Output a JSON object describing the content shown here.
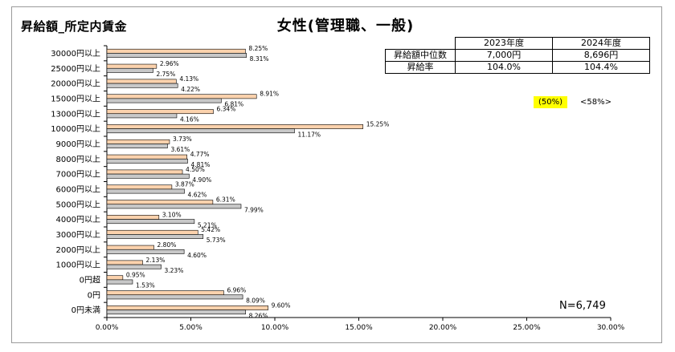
{
  "header": {
    "left_title": "昇給額_所定内賃金",
    "center_title": "女性(管理職、一般)"
  },
  "stats_table": {
    "columns": [
      "2023年度",
      "2024年度"
    ],
    "rows": [
      {
        "label": "昇給額中位数",
        "values": [
          "7,000円",
          "8,696円"
        ]
      },
      {
        "label": "昇給率",
        "values": [
          "104.0%",
          "104.4%"
        ]
      }
    ]
  },
  "notes": {
    "highlight": "(50%)",
    "plain": "<58%>"
  },
  "sample_size": "N=6,749",
  "colors": {
    "series_2024": "#fbd2ad",
    "series_2023": "#c8c8c8",
    "highlight": "#ffff00"
  },
  "chart_data": {
    "type": "bar",
    "orientation": "horizontal",
    "categories": [
      "30000円以上",
      "25000円以上",
      "20000円以上",
      "15000円以上",
      "13000円以上",
      "10000円以上",
      "9000円以上",
      "8000円以上",
      "7000円以上",
      "6000円以上",
      "5000円以上",
      "4000円以上",
      "3000円以上",
      "2000円以上",
      "1000円以上",
      "0円超",
      "0円",
      "0円未満"
    ],
    "series": [
      {
        "values": [
          8.25,
          2.96,
          4.13,
          8.91,
          6.34,
          15.25,
          3.73,
          4.77,
          4.5,
          3.87,
          6.31,
          3.1,
          5.42,
          2.8,
          2.13,
          0.95,
          6.96,
          9.6
        ],
        "labels": [
          "8.25%",
          "2.96%",
          "4.13%",
          "8.91%",
          "6.34%",
          "15.25%",
          "3.73%",
          "4.77%",
          "4.50%",
          "3.87%",
          "6.31%",
          "3.10%",
          "5.42%",
          "2.80%",
          "2.13%",
          "0.95%",
          "6.96%",
          "9.60%"
        ]
      },
      {
        "values": [
          8.31,
          2.75,
          4.22,
          6.81,
          4.16,
          11.17,
          3.61,
          4.81,
          4.9,
          4.62,
          7.99,
          5.21,
          5.73,
          4.6,
          3.23,
          1.53,
          8.09,
          8.26
        ],
        "labels": [
          "8.31%",
          "2.75%",
          "4.22%",
          "6.81%",
          "4.16%",
          "11.17%",
          "3.61%",
          "4.81%",
          "4.90%",
          "4.62%",
          "7.99%",
          "5.21%",
          "5.73%",
          "4.60%",
          "3.23%",
          "1.53%",
          "8.09%",
          "8.26%"
        ]
      }
    ],
    "xlim": [
      0,
      30
    ],
    "xticks": [
      "0.00%",
      "5.00%",
      "10.00%",
      "15.00%",
      "20.00%",
      "25.00%",
      "30.00%"
    ],
    "grid": false,
    "legend": "none"
  }
}
